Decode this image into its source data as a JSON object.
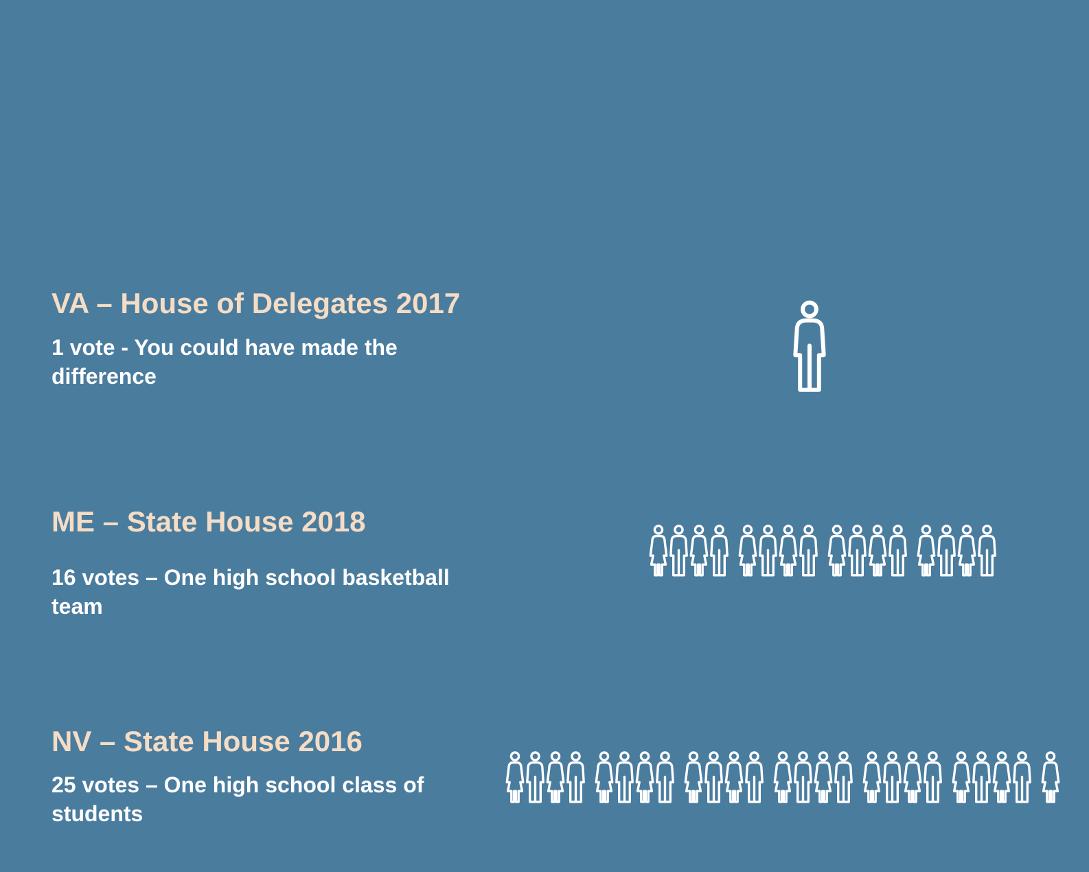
{
  "rows": [
    {
      "id": "va",
      "title": "VA – House of Delegates 2017",
      "subtitle": "1 vote - You could have made the difference",
      "votes": 1
    },
    {
      "id": "me",
      "title": "ME – State House 2018",
      "subtitle": "16 votes – One high school basketball team",
      "votes": 16
    },
    {
      "id": "nv",
      "title": "NV – State House 2016",
      "subtitle": "25 votes – One high school class of students",
      "votes": 25
    }
  ],
  "colors": {
    "background": "#4a7c9e",
    "title": "#f4dcc5",
    "text": "#ffffff",
    "icon": "#ffffff"
  },
  "icons": {
    "single": "person-icon",
    "group_female": "female-person-icon",
    "group_male": "male-person-icon"
  }
}
